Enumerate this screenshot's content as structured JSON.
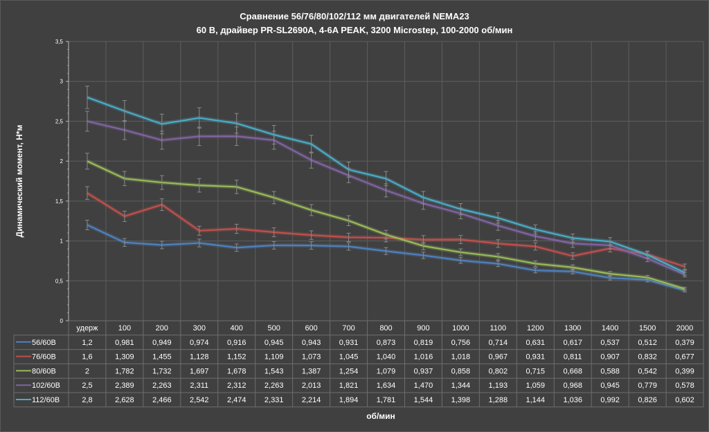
{
  "chart_data": {
    "type": "line",
    "title": "Сравнение 56/76/80/102/112 мм двигателей NEMA23",
    "subtitle": "60 В, драйвер PR-SL2690A, 4-6A PEAK, 3200 Microstep, 100-2000 об/мин",
    "xlabel": "об/мин",
    "ylabel": "Динамический момент, Н*м",
    "ylim": [
      0,
      3.5
    ],
    "yticks": [
      "0",
      "0,5",
      "1",
      "1,5",
      "2",
      "2,5",
      "3",
      "3,5"
    ],
    "grid": true,
    "error_bars": "5%",
    "legend": "data-table",
    "categories": [
      "удерж",
      "100",
      "200",
      "300",
      "400",
      "500",
      "600",
      "700",
      "800",
      "900",
      "1000",
      "1100",
      "1200",
      "1300",
      "1400",
      "1500",
      "2000"
    ],
    "series": [
      {
        "name": "56/60В",
        "color": "#4f81bd",
        "values": [
          1.2,
          0.981,
          0.949,
          0.974,
          0.916,
          0.945,
          0.943,
          0.931,
          0.873,
          0.819,
          0.756,
          0.714,
          0.631,
          0.617,
          0.537,
          0.512,
          0.379
        ],
        "labels": [
          "1,2",
          "0,981",
          "0,949",
          "0,974",
          "0,916",
          "0,945",
          "0,943",
          "0,931",
          "0,873",
          "0,819",
          "0,756",
          "0,714",
          "0,631",
          "0,617",
          "0,537",
          "0,512",
          "0,379"
        ]
      },
      {
        "name": "76/60В",
        "color": "#c0504d",
        "values": [
          1.6,
          1.309,
          1.455,
          1.128,
          1.152,
          1.109,
          1.073,
          1.045,
          1.04,
          1.016,
          1.018,
          0.967,
          0.931,
          0.811,
          0.907,
          0.832,
          0.677
        ],
        "labels": [
          "1,6",
          "1,309",
          "1,455",
          "1,128",
          "1,152",
          "1,109",
          "1,073",
          "1,045",
          "1,040",
          "1,016",
          "1,018",
          "0,967",
          "0,931",
          "0,811",
          "0,907",
          "0,832",
          "0,677"
        ]
      },
      {
        "name": "80/60В",
        "color": "#9bbb59",
        "values": [
          2,
          1.782,
          1.732,
          1.697,
          1.678,
          1.543,
          1.387,
          1.254,
          1.079,
          0.937,
          0.858,
          0.802,
          0.715,
          0.668,
          0.588,
          0.542,
          0.399
        ],
        "labels": [
          "2",
          "1,782",
          "1,732",
          "1,697",
          "1,678",
          "1,543",
          "1,387",
          "1,254",
          "1,079",
          "0,937",
          "0,858",
          "0,802",
          "0,715",
          "0,668",
          "0,588",
          "0,542",
          "0,399"
        ]
      },
      {
        "name": "102/60В",
        "color": "#8064a2",
        "values": [
          2.5,
          2.389,
          2.263,
          2.311,
          2.312,
          2.263,
          2.013,
          1.821,
          1.634,
          1.47,
          1.344,
          1.193,
          1.059,
          0.968,
          0.945,
          0.779,
          0.578
        ],
        "labels": [
          "2,5",
          "2,389",
          "2,263",
          "2,311",
          "2,312",
          "2,263",
          "2,013",
          "1,821",
          "1,634",
          "1,470",
          "1,344",
          "1,193",
          "1,059",
          "0,968",
          "0,945",
          "0,779",
          "0,578"
        ]
      },
      {
        "name": "112/60В",
        "color": "#4bacc6",
        "values": [
          2.8,
          2.628,
          2.466,
          2.542,
          2.474,
          2.331,
          2.214,
          1.894,
          1.781,
          1.544,
          1.398,
          1.288,
          1.144,
          1.036,
          0.992,
          0.826,
          0.602
        ],
        "labels": [
          "2,8",
          "2,628",
          "2,466",
          "2,542",
          "2,474",
          "2,331",
          "2,214",
          "1,894",
          "1,781",
          "1,544",
          "1,398",
          "1,288",
          "1,144",
          "1,036",
          "0,992",
          "0,826",
          "0,602"
        ]
      }
    ]
  }
}
